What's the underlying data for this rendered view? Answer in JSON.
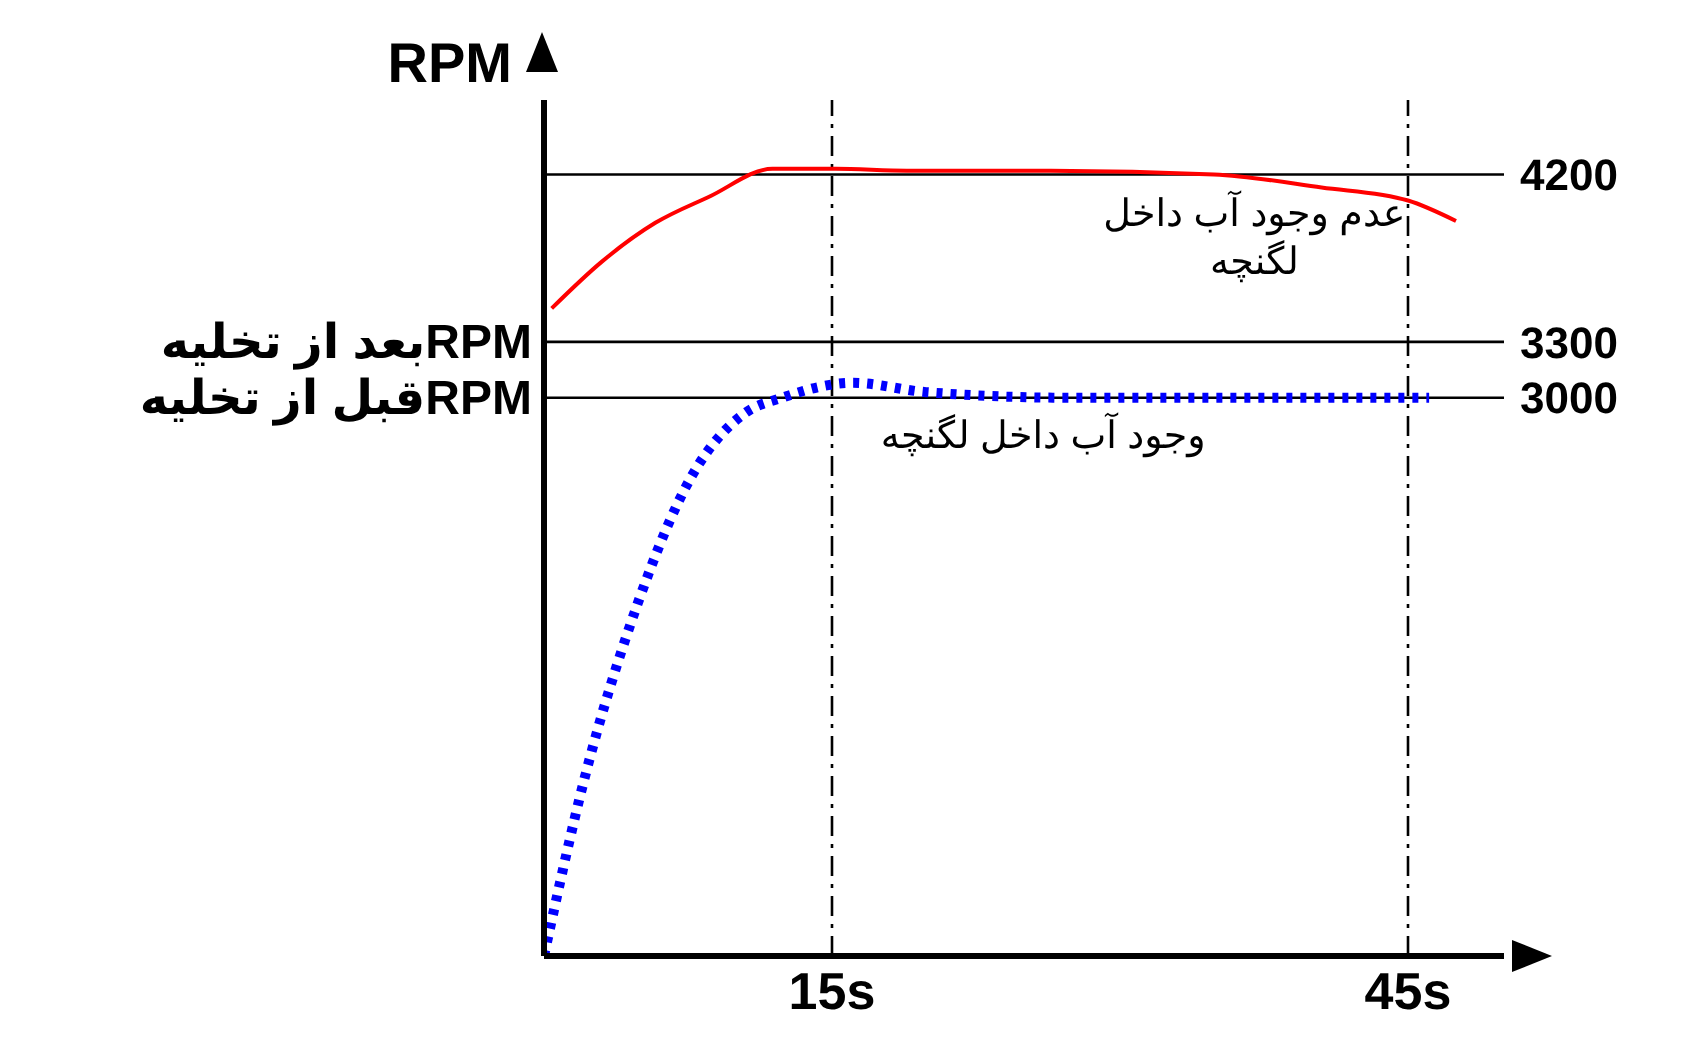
{
  "chart_data": {
    "type": "line",
    "ylabel": "RPM",
    "xlim": [
      0,
      50
    ],
    "xticks": [
      {
        "value": 15,
        "label": "15s"
      },
      {
        "value": 45,
        "label": "45s"
      }
    ],
    "ylim": [
      0,
      4600
    ],
    "yticks": [
      3000,
      3300,
      4200
    ],
    "series": [
      {
        "color": "#ff0000",
        "line_style": "solid",
        "x": [
          0.4,
          3,
          5.8,
          8.6,
          11.9,
          15.2,
          18.9,
          26.4,
          34.9,
          40.5,
          45,
          47.5
        ],
        "values": [
          3480,
          3730,
          3940,
          4080,
          4230,
          4230,
          4220,
          4220,
          4200,
          4130,
          4060,
          3950
        ]
      },
      {
        "color": "#0000ff",
        "line_style": "dotted",
        "x": [
          0,
          2.1,
          4.9,
          7.7,
          10.5,
          12.4,
          16.1,
          19.9,
          27.4,
          46.1
        ],
        "values": [
          0,
          950,
          1900,
          2580,
          2920,
          3000,
          3080,
          3030,
          3000,
          3000
        ]
      }
    ],
    "ref_lines": [
      {
        "axis": "y",
        "value": 4200,
        "label": null
      },
      {
        "axis": "y",
        "value": 3300,
        "label": "RPMبعد از تخلیه"
      },
      {
        "axis": "y",
        "value": 3000,
        "label": "RPMقبل از تخلیه"
      },
      {
        "axis": "x",
        "value": 15,
        "label": null,
        "line_style": "dashed"
      },
      {
        "axis": "x",
        "value": 45,
        "label": null,
        "line_style": "dashed"
      }
    ],
    "annotations": [
      {
        "text": "عدم وجود آب داخل لگنچه",
        "x": 37,
        "y": 4190
      },
      {
        "text": "وجود آب داخل لگنچه",
        "x": 26,
        "y": 3000
      }
    ],
    "grid": false,
    "marker": "none"
  }
}
